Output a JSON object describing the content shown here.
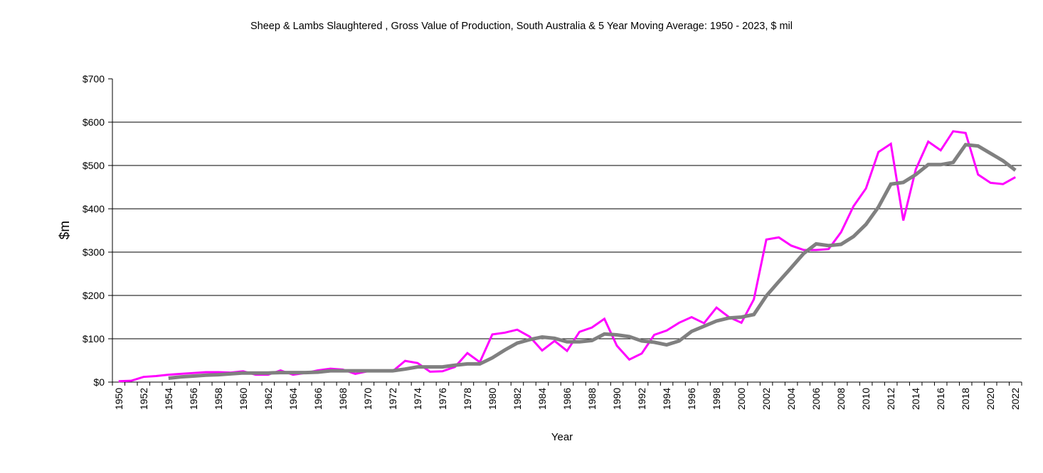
{
  "chart_data": {
    "type": "line",
    "title": "Sheep & Lambs Slaughtered , Gross Value of Production, South Australia & 5 Year Moving Average: 1950 - 2023, $ mil",
    "xlabel": "Year",
    "ylabel": "$m",
    "ylim": [
      0,
      700
    ],
    "yticks": [
      0,
      100,
      200,
      300,
      400,
      500,
      600,
      700
    ],
    "ytick_labels": [
      "$0",
      "$100",
      "$200",
      "$300",
      "$400",
      "$500",
      "$600",
      "$700"
    ],
    "grid": true,
    "legend": "none",
    "x": [
      1950,
      1951,
      1952,
      1953,
      1954,
      1955,
      1956,
      1957,
      1958,
      1959,
      1960,
      1961,
      1962,
      1963,
      1964,
      1965,
      1966,
      1967,
      1968,
      1969,
      1970,
      1971,
      1972,
      1973,
      1974,
      1975,
      1976,
      1977,
      1978,
      1979,
      1980,
      1981,
      1982,
      1983,
      1984,
      1985,
      1986,
      1987,
      1988,
      1989,
      1990,
      1991,
      1992,
      1993,
      1994,
      1995,
      1996,
      1997,
      1998,
      1999,
      2000,
      2001,
      2002,
      2003,
      2004,
      2005,
      2006,
      2007,
      2008,
      2009,
      2010,
      2011,
      2012,
      2013,
      2014,
      2015,
      2016,
      2017,
      2018,
      2019,
      2020,
      2021,
      2022
    ],
    "xtick_labels": [
      "1950",
      "1952",
      "1954",
      "1956",
      "1958",
      "1960",
      "1962",
      "1964",
      "1966",
      "1968",
      "1970",
      "1972",
      "1974",
      "1976",
      "1978",
      "1980",
      "1982",
      "1984",
      "1986",
      "1988",
      "1990",
      "1992",
      "1994",
      "1996",
      "1998",
      "2000",
      "2002",
      "2004",
      "2006",
      "2008",
      "2010",
      "2012",
      "2014",
      "2016",
      "2018",
      "2020",
      "2022"
    ],
    "series": [
      {
        "name": "Gross Value of Production",
        "color": "#ff00ff",
        "values": [
          2,
          3,
          12,
          14,
          17,
          19,
          21,
          23,
          23,
          22,
          25,
          17,
          17,
          27,
          17,
          21,
          27,
          31,
          29,
          19,
          25,
          25,
          25,
          49,
          44,
          24,
          25,
          35,
          67,
          46,
          110,
          114,
          121,
          105,
          73,
          95,
          72,
          116,
          126,
          146,
          84,
          52,
          66,
          109,
          119,
          137,
          150,
          136,
          172,
          150,
          137,
          191,
          329,
          334,
          315,
          305,
          305,
          307,
          346,
          406,
          447,
          531,
          550,
          373,
          491,
          555,
          535,
          579,
          575,
          479,
          460,
          457,
          473
        ]
      },
      {
        "name": "5 Year Moving Average",
        "color": "#808080",
        "values": [
          null,
          null,
          null,
          null,
          9,
          12,
          14,
          16,
          17,
          19,
          21,
          21,
          21,
          22,
          22,
          22,
          23,
          26,
          26,
          26,
          26,
          26,
          26,
          30,
          35,
          35,
          35,
          39,
          42,
          42,
          56,
          74,
          90,
          98,
          104,
          101,
          93,
          93,
          96,
          111,
          109,
          105,
          95,
          92,
          86,
          95,
          117,
          129,
          141,
          148,
          150,
          156,
          199,
          232,
          264,
          297,
          319,
          315,
          318,
          336,
          364,
          404,
          457,
          461,
          479,
          502,
          502,
          507,
          548,
          545,
          528,
          511,
          489
        ]
      }
    ]
  }
}
